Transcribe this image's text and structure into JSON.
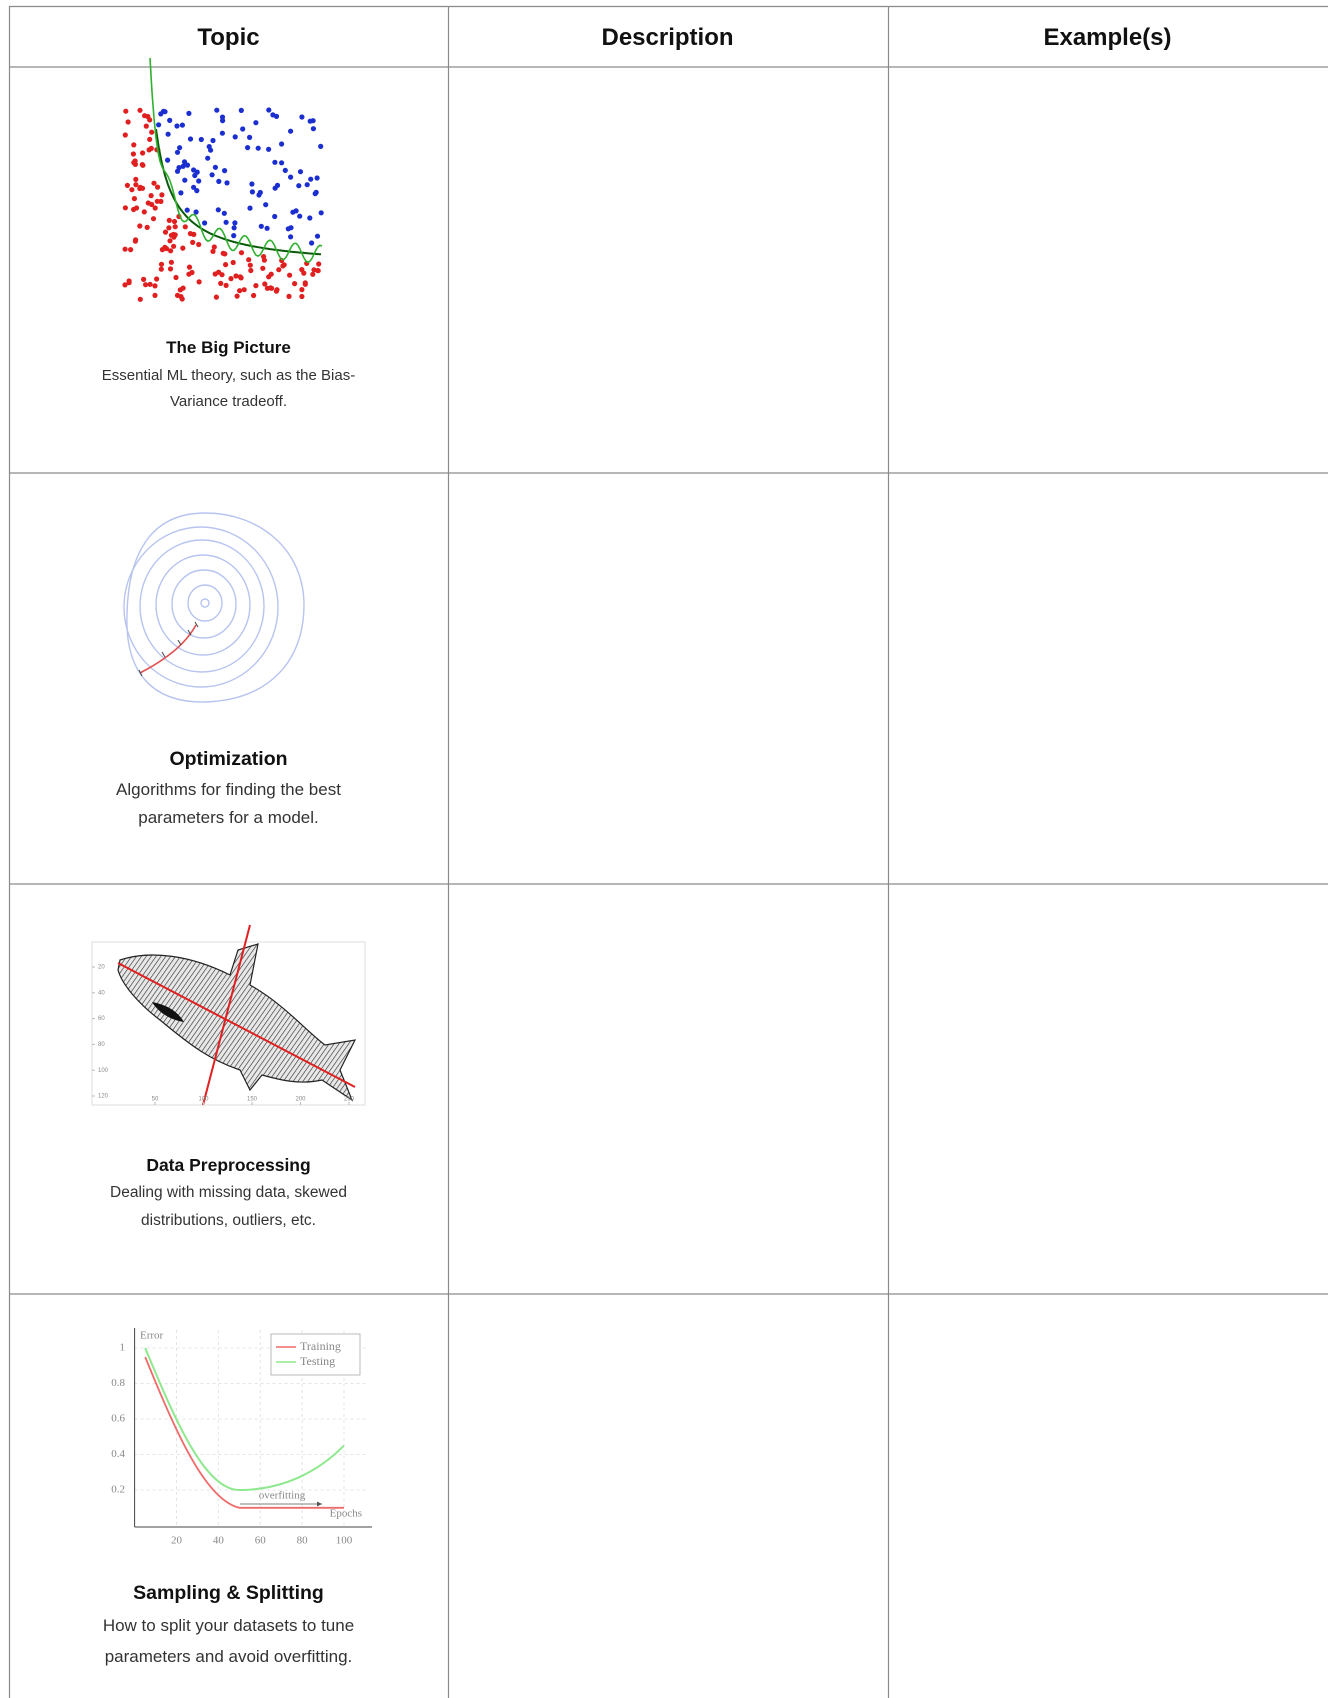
{
  "table": {
    "header": [
      "Topic",
      "Description",
      "Example(s)"
    ],
    "rows": [
      {
        "title": "The Big Picture",
        "description": "Essential ML theory, such as the Bias-Variance tradeoff."
      },
      {
        "title": "Optimization",
        "description": "Algorithms for finding the best parameters for a model."
      },
      {
        "title": "Data Preprocessing",
        "description": "Dealing with missing data, skewed distributions, outliers, etc.",
        "figure": {
          "yticks": [
            20,
            40,
            60,
            80,
            100,
            120
          ],
          "xticks": [
            50,
            100,
            150,
            200,
            250
          ]
        }
      },
      {
        "title": "Sampling & Splitting",
        "description": "How to split your datasets to tune parameters and avoid overfitting.",
        "figure": {
          "y_label": "Error",
          "x_label": "Epochs",
          "legend": [
            "Training",
            "Testing"
          ],
          "annotation": "overfitting",
          "yticks": [
            0.2,
            0.4,
            0.6,
            0.8,
            1
          ],
          "xticks": [
            20,
            40,
            60,
            80,
            100
          ]
        }
      }
    ]
  }
}
